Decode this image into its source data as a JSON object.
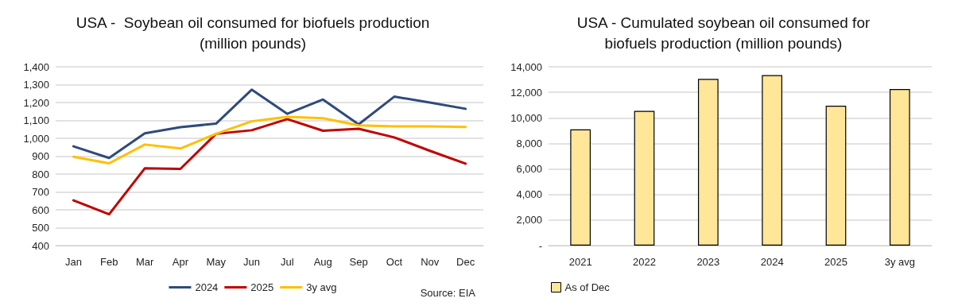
{
  "chart_data": [
    {
      "type": "line",
      "title": "USA -  Soybean oil consumed for biofuels production\n(million pounds)",
      "categories": [
        "Jan",
        "Feb",
        "Mar",
        "Apr",
        "May",
        "Jun",
        "Jul",
        "Aug",
        "Sep",
        "Oct",
        "Nov",
        "Dec"
      ],
      "series": [
        {
          "name": "2024",
          "color": "#2f4b7c",
          "values": [
            955,
            890,
            1028,
            1062,
            1082,
            1272,
            1137,
            1217,
            1078,
            1233,
            1200,
            1165
          ]
        },
        {
          "name": "2025",
          "color": "#c00000",
          "values": [
            653,
            575,
            832,
            829,
            1025,
            1045,
            1107,
            1042,
            1053,
            1005,
            930,
            858
          ]
        },
        {
          "name": "3y avg",
          "color": "#ffc000",
          "values": [
            897,
            860,
            965,
            943,
            1025,
            1095,
            1120,
            1112,
            1072,
            1067,
            1067,
            1063
          ]
        }
      ],
      "ylim": [
        400,
        1400
      ],
      "yticks": [
        400,
        500,
        600,
        700,
        800,
        900,
        {
          "value": 1000,
          "label": "1,000"
        },
        {
          "value": 1100,
          "label": "1,100"
        },
        {
          "value": 1200,
          "label": "1,200"
        },
        {
          "value": 1300,
          "label": "1,300"
        },
        {
          "value": 1400,
          "label": "1,400"
        }
      ],
      "grid": "y",
      "legend": "bottom",
      "marker": "none",
      "annotations": [
        "Source: EIA"
      ]
    },
    {
      "type": "bar",
      "title": "USA - Cumulated soybean oil consumed for\nbiofuels production (million pounds)",
      "categories": [
        "2021",
        "2022",
        "2023",
        "2024",
        "2025",
        "3y avg"
      ],
      "series": [
        {
          "name": "As of Dec",
          "color": "#ffe699",
          "values": [
            9100,
            10550,
            13050,
            13350,
            10950,
            12250
          ]
        }
      ],
      "ylim": [
        0,
        14000
      ],
      "yticks": [
        {
          "value": 0,
          "label": "-"
        },
        {
          "value": 2000,
          "label": "2,000"
        },
        {
          "value": 4000,
          "label": "4,000"
        },
        {
          "value": 6000,
          "label": "6,000"
        },
        {
          "value": 8000,
          "label": "8,000"
        },
        {
          "value": 10000,
          "label": "10,000"
        },
        {
          "value": 12000,
          "label": "12,000"
        },
        {
          "value": 14000,
          "label": "14,000"
        }
      ],
      "grid": "y",
      "legend": "bottom left"
    }
  ]
}
